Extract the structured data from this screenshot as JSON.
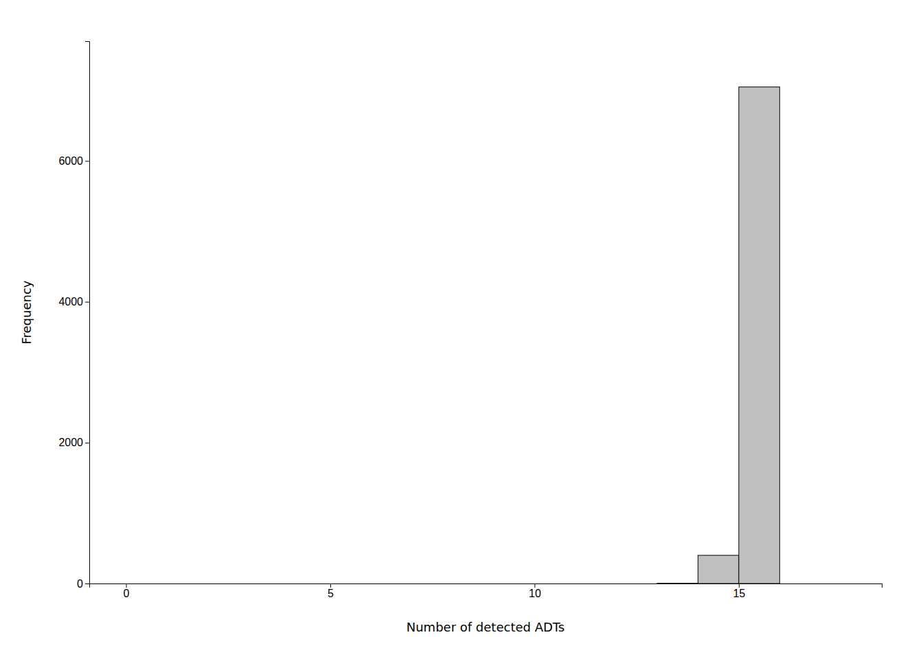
{
  "chart_data": {
    "type": "histogram",
    "xlabel": "Number of detected ADTs",
    "ylabel": "Frequency",
    "bins": [
      0,
      1,
      2,
      3,
      4,
      5,
      6,
      7,
      8,
      9,
      10,
      11,
      12,
      13,
      14,
      15,
      16,
      17
    ],
    "values": [
      0,
      0,
      0,
      0,
      0,
      0,
      0,
      0,
      0,
      0,
      0,
      0,
      0,
      3,
      400,
      7050,
      0
    ],
    "color": "#c0c0c0",
    "xlim": [
      -0.9,
      18.5
    ],
    "ylim": [
      0,
      7700
    ],
    "xticks": [
      0,
      5,
      10,
      15
    ],
    "yticks": [
      0,
      2000,
      4000,
      6000
    ]
  }
}
